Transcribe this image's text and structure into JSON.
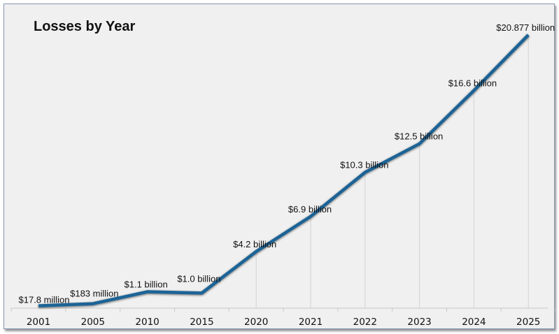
{
  "chart_data": {
    "type": "line",
    "title": "Losses by Year",
    "categories": [
      "2001",
      "2005",
      "2010",
      "2015",
      "2020",
      "2021",
      "2022",
      "2023",
      "2024",
      "2025"
    ],
    "values_billion_usd": [
      0.0178,
      0.183,
      1.1,
      1.0,
      4.2,
      6.9,
      10.3,
      12.5,
      16.6,
      20.877
    ],
    "data_labels": [
      "$17.8 million",
      "$183 million",
      "$1.1 billion",
      "$1.0 billion",
      "$4.2 billion",
      "$6.9 billion",
      "$10.3 billion",
      "$12.5 billion",
      "$16.6 billion",
      "$20.877 billion"
    ],
    "xlabel": "",
    "ylabel": "",
    "y_axis_visible": false,
    "drop_lines": true,
    "legend": "none",
    "line_color": "#1a6496"
  }
}
